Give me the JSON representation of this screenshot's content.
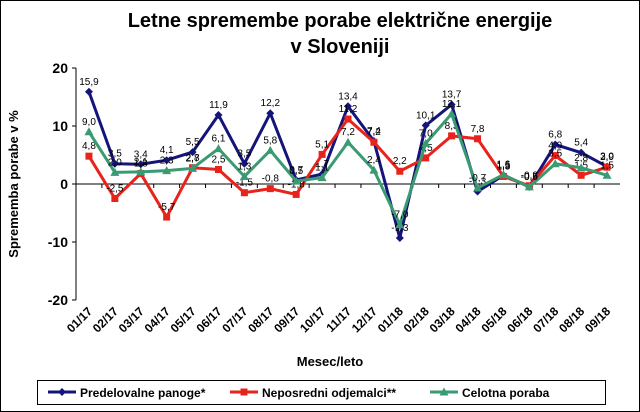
{
  "chart_data": {
    "type": "line",
    "title": "Letne spremembe porabe električne energije v Sloveniji",
    "xlabel": "Mesec/leto",
    "ylabel": "Sprememba porabe v %",
    "categories": [
      "01/17",
      "02/17",
      "03/17",
      "04/17",
      "05/17",
      "06/17",
      "07/17",
      "08/17",
      "09/17",
      "10/17",
      "11/17",
      "12/17",
      "01/18",
      "02/18",
      "03/18",
      "04/18",
      "05/18",
      "06/18",
      "07/18",
      "08/18",
      "09/18"
    ],
    "series": [
      {
        "name": "Predelovalne panoge*",
        "color": "#14147a",
        "marker": "diamond",
        "values": [
          15.9,
          3.5,
          3.4,
          4.1,
          5.5,
          11.9,
          3.5,
          12.2,
          0.7,
          1.7,
          13.4,
          7.4,
          -9.3,
          10.1,
          13.7,
          -1.3,
          1.5,
          -0.5,
          6.8,
          5.4,
          3.0
        ],
        "value_labels": [
          "15,9",
          "3,5",
          "3,4",
          "4,1",
          "5,5",
          "11,9",
          "3,5",
          "12,2",
          "0,7",
          "1,7",
          "13,4",
          "7,4",
          "-9,3",
          "10,1",
          "13,7",
          "-1,3",
          "1,5",
          "-0,5",
          "6,8",
          "5,4",
          "3,0"
        ]
      },
      {
        "name": "Neposredni odjemalci**",
        "color": "#e8231c",
        "marker": "square",
        "values": [
          4.8,
          -2.5,
          1.8,
          -5.7,
          2.8,
          2.5,
          -1.5,
          -0.8,
          -1.8,
          5.1,
          11.2,
          7.2,
          2.2,
          4.5,
          8.3,
          7.8,
          1.3,
          -0.3,
          4.9,
          1.5,
          2.9
        ],
        "value_labels": [
          "4,8",
          "-2,5",
          "1,8",
          "-5,7",
          "2,8",
          "2,5",
          "-1,5",
          "-0,8",
          "-1,8",
          "5,1",
          "11,2",
          "7,2",
          "2,2",
          "4,5",
          "8,3",
          "7,8",
          "1,3",
          "-0,3",
          "4,9",
          "1,5",
          "2,9"
        ]
      },
      {
        "name": "Celotna poraba",
        "color": "#3a9a72",
        "marker": "triangle",
        "values": [
          9.0,
          2.0,
          2.1,
          2.3,
          2.7,
          6.1,
          1.3,
          5.8,
          0.5,
          1.1,
          7.2,
          2.4,
          -7.0,
          7.0,
          12.1,
          -0.7,
          1.6,
          -0.5,
          3.5,
          2.8,
          1.5
        ],
        "value_labels": [
          "9,0",
          "2,0",
          "2,1",
          "2,3",
          "2,7",
          "6,1",
          "1,3",
          "5,8",
          "0,5",
          "1,1",
          "7,2",
          "2,4",
          "-7,0",
          "7,0",
          "12,1",
          "-0,7",
          "1,6",
          "-0,5",
          "3,5",
          "2,8",
          "1,5"
        ]
      }
    ],
    "ylim": [
      -20,
      20
    ],
    "yticks": [
      -20,
      -10,
      0,
      10,
      20
    ],
    "grid": false,
    "legend": "bottom"
  }
}
